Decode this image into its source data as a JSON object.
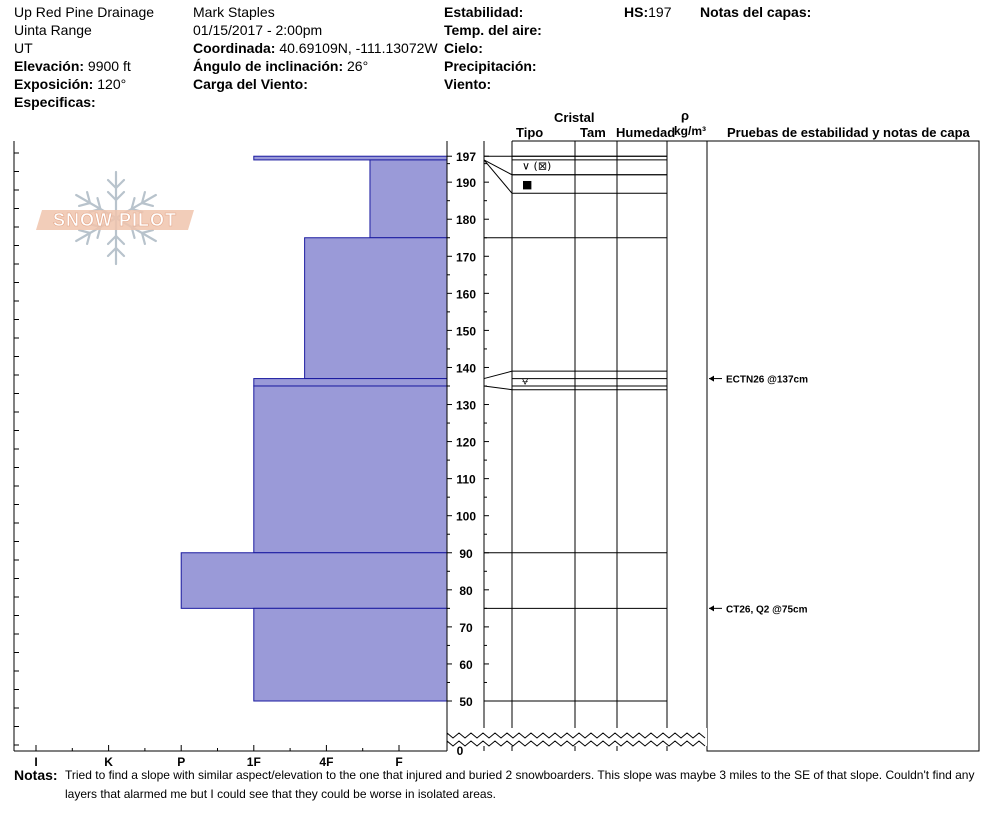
{
  "site": {
    "location": "Up Red Pine Drainage",
    "range": "Uinta Range",
    "state": "UT",
    "elevation_label": "Elevación:",
    "elevation_value": "9900 ft",
    "aspect_label": "Exposición:",
    "aspect_value": "120°",
    "specifics_label": "Especificas:"
  },
  "observer": {
    "name": "Mark Staples",
    "datetime": "01/15/2017 - 2:00pm",
    "coord_label": "Coordinada:",
    "coord_value": "40.69109N, -111.13072W",
    "slope_label": "Ángulo de inclinación:",
    "slope_value": "26°",
    "wind_loading_label": "Carga del Viento:"
  },
  "conditions": {
    "stability_label": "Estabilidad:",
    "air_temp_label": "Temp. del aire:",
    "sky_label": "Cielo:",
    "precip_label": "Precipitación:",
    "wind_label": "Viento:",
    "hs_label": "HS:",
    "hs_value": "197",
    "layer_notes_label": "Notas del capas:"
  },
  "columns": {
    "crystal": "Cristal",
    "type": "Tipo",
    "size": "Tam",
    "moisture": "Humedad",
    "rho": "ρ",
    "density_unit": "kg/m³",
    "tests": "Pruebas de estabilidad y notas de capa"
  },
  "logo_text": "SNOW PILOT",
  "notes": {
    "label": "Notas:",
    "text": "Tried to find a slope with similar aspect/elevation to the one that injured and buried 2 snowboarders. This slope was maybe 3 miles to the SE of that slope. Couldn't find any layers that alarmed me but I could see that they could be worse in isolated areas."
  },
  "chart_data": {
    "type": "bar",
    "orientation": "horizontal",
    "hardness_scale": [
      "I",
      "K",
      "P",
      "1F",
      "4F",
      "F"
    ],
    "height_ticks": [
      50,
      60,
      70,
      80,
      90,
      100,
      110,
      120,
      130,
      140,
      150,
      160,
      170,
      180,
      190,
      197
    ],
    "zero_label": "0",
    "layers": [
      {
        "bottom": 196,
        "top": 197,
        "hardness": 3.0
      },
      {
        "bottom": 175,
        "top": 196,
        "hardness": 4.6
      },
      {
        "bottom": 137,
        "top": 175,
        "hardness": 3.7
      },
      {
        "bottom": 135,
        "top": 137,
        "hardness": 3.0
      },
      {
        "bottom": 90,
        "top": 135,
        "hardness": 3.0
      },
      {
        "bottom": 75,
        "top": 90,
        "hardness": 2.0
      },
      {
        "bottom": 50,
        "top": 75,
        "hardness": 3.0
      }
    ],
    "boundaries": [
      197,
      196,
      175,
      137,
      135,
      90,
      75,
      50
    ],
    "grain_rows": [
      {
        "top": 197,
        "bottom": 192,
        "symbol": "∨ (⊠)"
      },
      {
        "top": 192,
        "bottom": 187,
        "symbol": "■"
      },
      {
        "top": 139,
        "bottom": 134,
        "symbol": "⩝"
      }
    ],
    "tests": [
      {
        "height": 137,
        "label": "ECTN26 @137cm"
      },
      {
        "height": 75,
        "label": "CT26, Q2 @75cm"
      }
    ]
  }
}
